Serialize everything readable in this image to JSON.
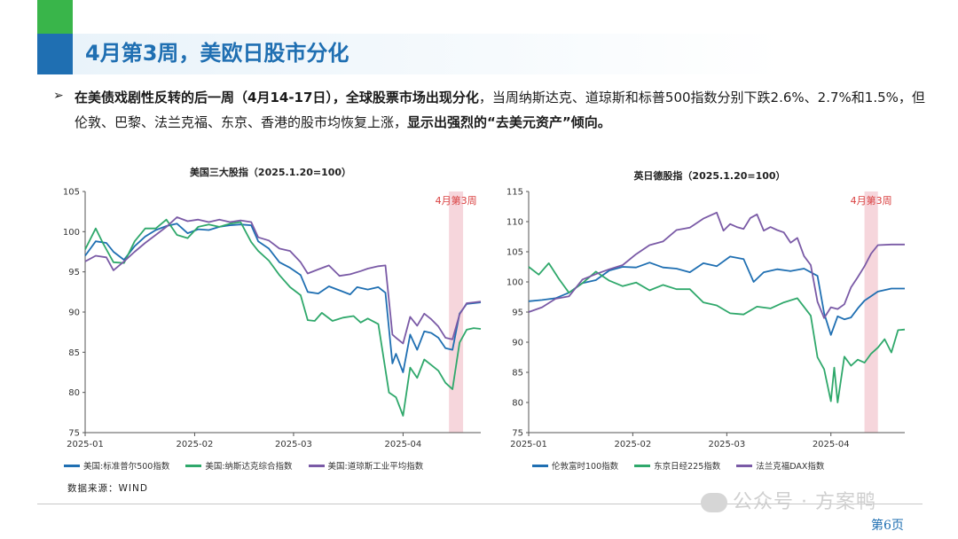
{
  "header": {
    "title": "4月第3周，美欧日股市分化"
  },
  "bullet": {
    "marker": "➢",
    "text_bold_1": "在美债戏剧性反转的后一周（4月14-17日），全球股票市场出现分化",
    "text_1": "，当周纳斯达克、道琼斯和标普500指数分别下跌2.6%、2.7%和1.5%，但伦敦、巴黎、法兰克福、东京、香港的股市均恢复上涨，",
    "text_bold_2": "显示出强烈的“去美元资产”倾向。"
  },
  "source": "数据来源：WIND",
  "watermark": "公众号 · 方案鸭",
  "page_number": "第6页",
  "chart_data": [
    {
      "type": "line",
      "title": "美国三大股指（2025.1.20=100）",
      "ylim": [
        75,
        105
      ],
      "yticks": [
        75,
        80,
        85,
        90,
        95,
        100,
        105
      ],
      "xticks": [
        "2025-01",
        "2025-02",
        "2025-03",
        "2025-04"
      ],
      "xlim": [
        0,
        112
      ],
      "xtick_positions": [
        0,
        31,
        59,
        90
      ],
      "highlight": {
        "label": "4月第3周",
        "x0": 103,
        "x1": 107,
        "color": "#f6d6dc"
      },
      "series": [
        {
          "name": "美国:标准普尔500指数",
          "color": "#1f6fb2",
          "points": [
            [
              0,
              97
            ],
            [
              3,
              98.8
            ],
            [
              6,
              98.6
            ],
            [
              8,
              97.5
            ],
            [
              11,
              96.5
            ],
            [
              14,
              98.2
            ],
            [
              17,
              99.4
            ],
            [
              20,
              100.2
            ],
            [
              23,
              100.7
            ],
            [
              26,
              101
            ],
            [
              29,
              99.8
            ],
            [
              32,
              100.3
            ],
            [
              35,
              100.2
            ],
            [
              38,
              100.6
            ],
            [
              41,
              100.8
            ],
            [
              44,
              100.9
            ],
            [
              47,
              100.8
            ],
            [
              49,
              98.8
            ],
            [
              52,
              97.9
            ],
            [
              55,
              96.2
            ],
            [
              58,
              95.5
            ],
            [
              61,
              94.6
            ],
            [
              63,
              92.5
            ],
            [
              66,
              92.3
            ],
            [
              69,
              93.2
            ],
            [
              72,
              92.7
            ],
            [
              75,
              92.2
            ],
            [
              77,
              93.1
            ],
            [
              80,
              92.8
            ],
            [
              83,
              93.1
            ],
            [
              85,
              92.4
            ],
            [
              87,
              83.6
            ],
            [
              88,
              84.8
            ],
            [
              90,
              82.5
            ],
            [
              92,
              87.2
            ],
            [
              94,
              85.3
            ],
            [
              96,
              87.6
            ],
            [
              98,
              87.4
            ],
            [
              100,
              86.8
            ],
            [
              102,
              85.5
            ],
            [
              104,
              85.3
            ],
            [
              106,
              89.8
            ],
            [
              108,
              91
            ],
            [
              110,
              91.1
            ],
            [
              112,
              91.2
            ]
          ]
        },
        {
          "name": "美国:纳斯达克综合指数",
          "color": "#2fa86b",
          "points": [
            [
              0,
              97.8
            ],
            [
              3,
              100.4
            ],
            [
              5,
              98.6
            ],
            [
              8,
              96.2
            ],
            [
              11,
              96.1
            ],
            [
              14,
              98.8
            ],
            [
              17,
              100.4
            ],
            [
              20,
              100.4
            ],
            [
              23,
              101.5
            ],
            [
              26,
              99.6
            ],
            [
              29,
              99.2
            ],
            [
              32,
              100.6
            ],
            [
              35,
              100.9
            ],
            [
              38,
              100.6
            ],
            [
              41,
              101
            ],
            [
              44,
              101.2
            ],
            [
              47,
              98.7
            ],
            [
              49,
              97.6
            ],
            [
              52,
              96.4
            ],
            [
              55,
              94.6
            ],
            [
              58,
              93.1
            ],
            [
              61,
              92.1
            ],
            [
              63,
              89
            ],
            [
              65,
              88.9
            ],
            [
              67,
              89.9
            ],
            [
              70,
              88.9
            ],
            [
              73,
              89.3
            ],
            [
              76,
              89.5
            ],
            [
              78,
              88.7
            ],
            [
              80,
              89.2
            ],
            [
              83,
              88.5
            ],
            [
              86,
              80
            ],
            [
              88,
              79.4
            ],
            [
              90,
              77.1
            ],
            [
              92,
              83.1
            ],
            [
              94,
              81.8
            ],
            [
              96,
              84.1
            ],
            [
              98,
              83.4
            ],
            [
              100,
              82.7
            ],
            [
              102,
              81.2
            ],
            [
              104,
              80.4
            ],
            [
              106,
              86.2
            ],
            [
              108,
              87.8
            ],
            [
              110,
              88
            ],
            [
              112,
              87.9
            ]
          ]
        },
        {
          "name": "美国:道琼斯工业平均指数",
          "color": "#7a5aa6",
          "points": [
            [
              0,
              96.3
            ],
            [
              3,
              97
            ],
            [
              6,
              96.8
            ],
            [
              8,
              95.2
            ],
            [
              11,
              96.3
            ],
            [
              14,
              97.5
            ],
            [
              17,
              98.6
            ],
            [
              20,
              99.6
            ],
            [
              23,
              100.6
            ],
            [
              26,
              101.8
            ],
            [
              29,
              101.3
            ],
            [
              32,
              101.5
            ],
            [
              35,
              101.2
            ],
            [
              38,
              101.5
            ],
            [
              41,
              101.2
            ],
            [
              44,
              101.4
            ],
            [
              47,
              101.2
            ],
            [
              49,
              99.3
            ],
            [
              52,
              98.9
            ],
            [
              55,
              97.9
            ],
            [
              58,
              97.6
            ],
            [
              61,
              96.2
            ],
            [
              63,
              94.8
            ],
            [
              66,
              95.3
            ],
            [
              69,
              95.8
            ],
            [
              72,
              94.5
            ],
            [
              75,
              94.7
            ],
            [
              78,
              95.1
            ],
            [
              80,
              95.4
            ],
            [
              83,
              95.7
            ],
            [
              85,
              95.8
            ],
            [
              87,
              87.2
            ],
            [
              88,
              86.8
            ],
            [
              90,
              86.1
            ],
            [
              92,
              89.4
            ],
            [
              94,
              88.3
            ],
            [
              96,
              89.8
            ],
            [
              98,
              89.1
            ],
            [
              100,
              88.2
            ],
            [
              102,
              86.8
            ],
            [
              104,
              86.6
            ],
            [
              106,
              89.7
            ],
            [
              108,
              91.1
            ],
            [
              110,
              91.2
            ],
            [
              112,
              91.3
            ]
          ]
        }
      ],
      "legend_position": "bottom"
    },
    {
      "type": "line",
      "title": "英日德股指（2025.1.20=100）",
      "ylim": [
        75,
        115
      ],
      "yticks": [
        75,
        80,
        85,
        90,
        95,
        100,
        105,
        110,
        115
      ],
      "xticks": [
        "2025-01",
        "2025-02",
        "2025-03",
        "2025-04"
      ],
      "xlim": [
        0,
        112
      ],
      "xtick_positions": [
        0,
        31,
        59,
        90
      ],
      "highlight": {
        "label": "4月第3周",
        "x0": 100,
        "x1": 104,
        "color": "#f6d6dc"
      },
      "series": [
        {
          "name": "伦敦富时100指数",
          "color": "#1f6fb2",
          "points": [
            [
              0,
              96.8
            ],
            [
              4,
              97
            ],
            [
              8,
              97.3
            ],
            [
              12,
              98.2
            ],
            [
              16,
              99.8
            ],
            [
              20,
              100.3
            ],
            [
              24,
              101.9
            ],
            [
              28,
              102.5
            ],
            [
              32,
              102.4
            ],
            [
              36,
              103.2
            ],
            [
              40,
              102.4
            ],
            [
              44,
              102.2
            ],
            [
              48,
              101.6
            ],
            [
              52,
              103.1
            ],
            [
              56,
              102.6
            ],
            [
              60,
              104.2
            ],
            [
              64,
              103.8
            ],
            [
              67,
              100
            ],
            [
              70,
              101.6
            ],
            [
              74,
              102.1
            ],
            [
              78,
              101.8
            ],
            [
              82,
              102.2
            ],
            [
              86,
              101
            ],
            [
              88,
              94.8
            ],
            [
              90,
              91.2
            ],
            [
              92,
              94.3
            ],
            [
              94,
              93.8
            ],
            [
              96,
              94.1
            ],
            [
              98,
              95.6
            ],
            [
              100,
              96.9
            ],
            [
              104,
              98.4
            ],
            [
              108,
              98.9
            ],
            [
              112,
              98.9
            ]
          ]
        },
        {
          "name": "东京日经225指数",
          "color": "#2fa86b",
          "points": [
            [
              0,
              102.5
            ],
            [
              3,
              101.2
            ],
            [
              6,
              103.1
            ],
            [
              9,
              100.5
            ],
            [
              12,
              98.2
            ],
            [
              16,
              99.8
            ],
            [
              20,
              101.7
            ],
            [
              24,
              100.2
            ],
            [
              28,
              99.3
            ],
            [
              32,
              99.9
            ],
            [
              36,
              98.6
            ],
            [
              40,
              99.5
            ],
            [
              44,
              98.8
            ],
            [
              48,
              98.8
            ],
            [
              52,
              96.6
            ],
            [
              56,
              96.1
            ],
            [
              60,
              94.8
            ],
            [
              64,
              94.6
            ],
            [
              68,
              95.9
            ],
            [
              72,
              95.6
            ],
            [
              76,
              96.6
            ],
            [
              80,
              97.3
            ],
            [
              84,
              94.4
            ],
            [
              86,
              87.5
            ],
            [
              88,
              85.5
            ],
            [
              90,
              80.2
            ],
            [
              91,
              85.8
            ],
            [
              92,
              80
            ],
            [
              94,
              87.6
            ],
            [
              96,
              86.1
            ],
            [
              98,
              87.1
            ],
            [
              100,
              86.6
            ],
            [
              102,
              88.1
            ],
            [
              104,
              89.1
            ],
            [
              106,
              90.5
            ],
            [
              108,
              88.3
            ],
            [
              110,
              92
            ],
            [
              112,
              92.1
            ]
          ]
        },
        {
          "name": "法兰克福DAX指数",
          "color": "#7a5aa6",
          "points": [
            [
              0,
              95
            ],
            [
              4,
              95.8
            ],
            [
              8,
              97.2
            ],
            [
              12,
              97.6
            ],
            [
              16,
              100.4
            ],
            [
              20,
              101.3
            ],
            [
              24,
              102.1
            ],
            [
              28,
              102.8
            ],
            [
              32,
              104.6
            ],
            [
              36,
              106.1
            ],
            [
              40,
              106.7
            ],
            [
              44,
              108.6
            ],
            [
              48,
              109
            ],
            [
              52,
              110.5
            ],
            [
              56,
              111.5
            ],
            [
              58,
              108.5
            ],
            [
              60,
              109.6
            ],
            [
              62,
              109.1
            ],
            [
              64,
              108.8
            ],
            [
              66,
              110.6
            ],
            [
              68,
              111.2
            ],
            [
              70,
              108.5
            ],
            [
              72,
              109.1
            ],
            [
              74,
              108.6
            ],
            [
              76,
              108.2
            ],
            [
              78,
              106.5
            ],
            [
              80,
              107.3
            ],
            [
              82,
              104.3
            ],
            [
              84,
              102.8
            ],
            [
              86,
              96.7
            ],
            [
              88,
              94
            ],
            [
              90,
              95.8
            ],
            [
              92,
              95.5
            ],
            [
              94,
              96.3
            ],
            [
              96,
              99.1
            ],
            [
              98,
              100.8
            ],
            [
              100,
              102.6
            ],
            [
              102,
              104.7
            ],
            [
              104,
              106.1
            ],
            [
              108,
              106.2
            ],
            [
              112,
              106.2
            ]
          ]
        }
      ],
      "legend_position": "bottom"
    }
  ]
}
